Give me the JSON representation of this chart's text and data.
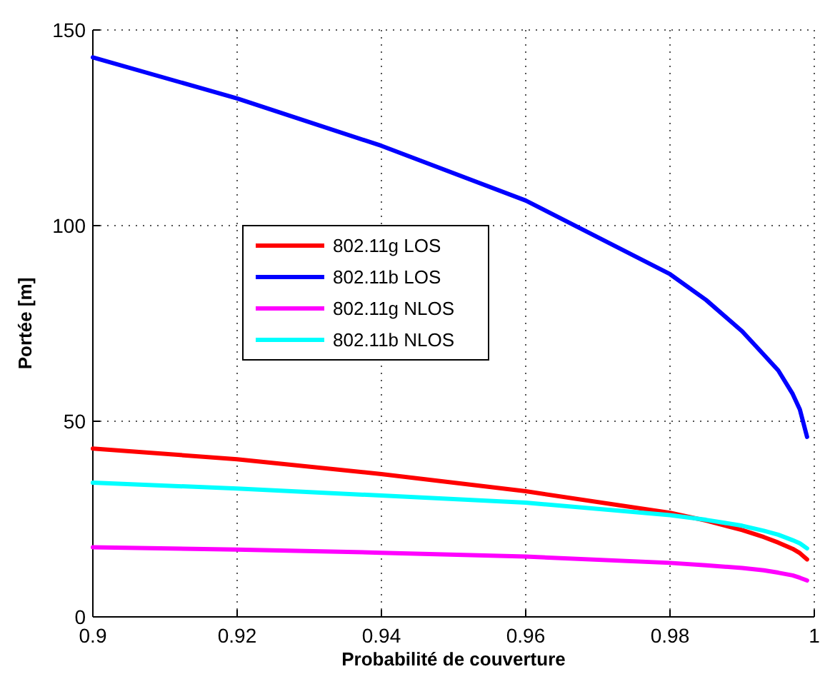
{
  "chart_data": {
    "type": "line",
    "xlabel": "Probabilité de couverture",
    "ylabel": "Portée [m]",
    "x": [
      0.9,
      0.92,
      0.94,
      0.96,
      0.98,
      0.985,
      0.99,
      0.993,
      0.995,
      0.997,
      0.998,
      0.999
    ],
    "xlim": [
      0.9,
      1
    ],
    "xticks": [
      0.9,
      0.92,
      0.94,
      0.96,
      0.98,
      1
    ],
    "ylim": [
      0,
      150
    ],
    "yticks": [
      0,
      50,
      100,
      150
    ],
    "grid": true,
    "legend": "left",
    "line_style": "solid",
    "marker": "none",
    "series": [
      {
        "name": "802.11g LOS",
        "color": "#ff0000",
        "values": [
          43,
          40.3,
          36.5,
          32.1,
          26.6,
          24.6,
          22.2,
          20.4,
          19,
          17.4,
          16.3,
          14.7
        ]
      },
      {
        "name": "802.11b LOS",
        "color": "#0000ff",
        "values": [
          143,
          132.5,
          120.4,
          106.4,
          87.6,
          81,
          73,
          67,
          63,
          57,
          53,
          46
        ]
      },
      {
        "name": "802.11g NLOS",
        "color": "#ff00ff",
        "values": [
          17.8,
          17.2,
          16.4,
          15.4,
          13.8,
          13.2,
          12.5,
          11.9,
          11.3,
          10.6,
          10,
          9.3
        ]
      },
      {
        "name": "802.11b NLOS",
        "color": "#00ffff",
        "values": [
          34.3,
          32.8,
          31,
          29.2,
          26,
          24.8,
          23.3,
          22,
          21,
          19.6,
          18.8,
          17.5
        ]
      }
    ]
  }
}
